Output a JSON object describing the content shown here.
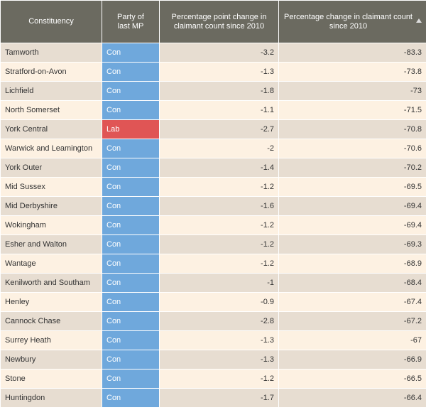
{
  "table": {
    "columns": [
      "Constituency",
      "Party of last MP",
      "Percentage point change in claimant count since 2010",
      "Percentage change in claimant count since 2010"
    ],
    "rows": [
      [
        "Tamworth",
        "Con",
        -3.2,
        -83.3
      ],
      [
        "Stratford-on-Avon",
        "Con",
        -1.3,
        -73.8
      ],
      [
        "Lichfield",
        "Con",
        -1.8,
        -73
      ],
      [
        "North Somerset",
        "Con",
        -1.1,
        -71.5
      ],
      [
        "York Central",
        "Lab",
        -2.7,
        -70.8
      ],
      [
        "Warwick and Leamington",
        "Con",
        -2,
        -70.6
      ],
      [
        "York Outer",
        "Con",
        -1.4,
        -70.2
      ],
      [
        "Mid Sussex",
        "Con",
        -1.2,
        -69.5
      ],
      [
        "Mid Derbyshire",
        "Con",
        -1.6,
        -69.4
      ],
      [
        "Wokingham",
        "Con",
        -1.2,
        -69.4
      ],
      [
        "Esher and Walton",
        "Con",
        -1.2,
        -69.3
      ],
      [
        "Wantage",
        "Con",
        -1.2,
        -68.9
      ],
      [
        "Kenilworth and Southam",
        "Con",
        -1,
        -68.4
      ],
      [
        "Henley",
        "Con",
        -0.9,
        -67.4
      ],
      [
        "Cannock Chase",
        "Con",
        -2.8,
        -67.2
      ],
      [
        "Surrey Heath",
        "Con",
        -1.3,
        -67
      ],
      [
        "Newbury",
        "Con",
        -1.3,
        -66.9
      ],
      [
        "Stone",
        "Con",
        -1.2,
        -66.5
      ],
      [
        "Huntingdon",
        "Con",
        -1.7,
        -66.4
      ]
    ]
  }
}
